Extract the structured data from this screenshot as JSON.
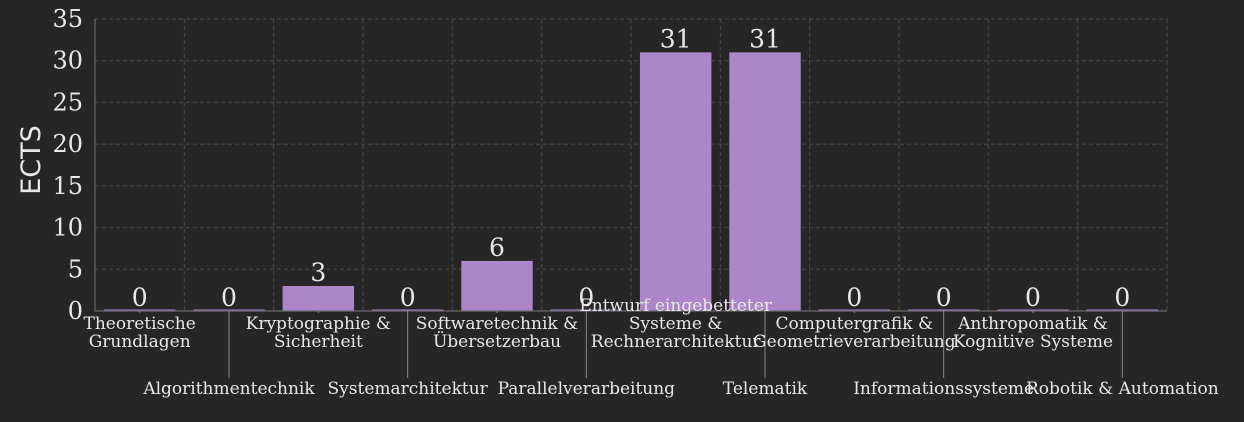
{
  "chart_data": {
    "type": "bar",
    "ylabel": "ECTS",
    "ylim": [
      0,
      35
    ],
    "yticks": [
      0,
      5,
      10,
      15,
      20,
      25,
      30,
      35
    ],
    "grid": true,
    "categories": [
      [
        "Theoretische",
        "Grundlagen"
      ],
      [
        "Algorithmentechnik"
      ],
      [
        "Kryptographie  &",
        "Sicherheit"
      ],
      [
        "Systemarchitektur"
      ],
      [
        "Softwaretechnik  &",
        "Übersetzerbau"
      ],
      [
        "Parallelverarbeitung"
      ],
      [
        "Entwurf  eingebetteter",
        "Systeme  &",
        "Rechnerarchitektur"
      ],
      [
        "Telematik"
      ],
      [
        "Computergrafik  &",
        "Geometrieverarbeitung"
      ],
      [
        "Informationssysteme"
      ],
      [
        "Anthropomatik  &",
        "Kognitive  Systeme"
      ],
      [
        "Robotik  &  Automation"
      ]
    ],
    "values": [
      0,
      0,
      3,
      0,
      6,
      0,
      31,
      31,
      0,
      0,
      0,
      0
    ],
    "bar_color": "#ad86ca"
  }
}
